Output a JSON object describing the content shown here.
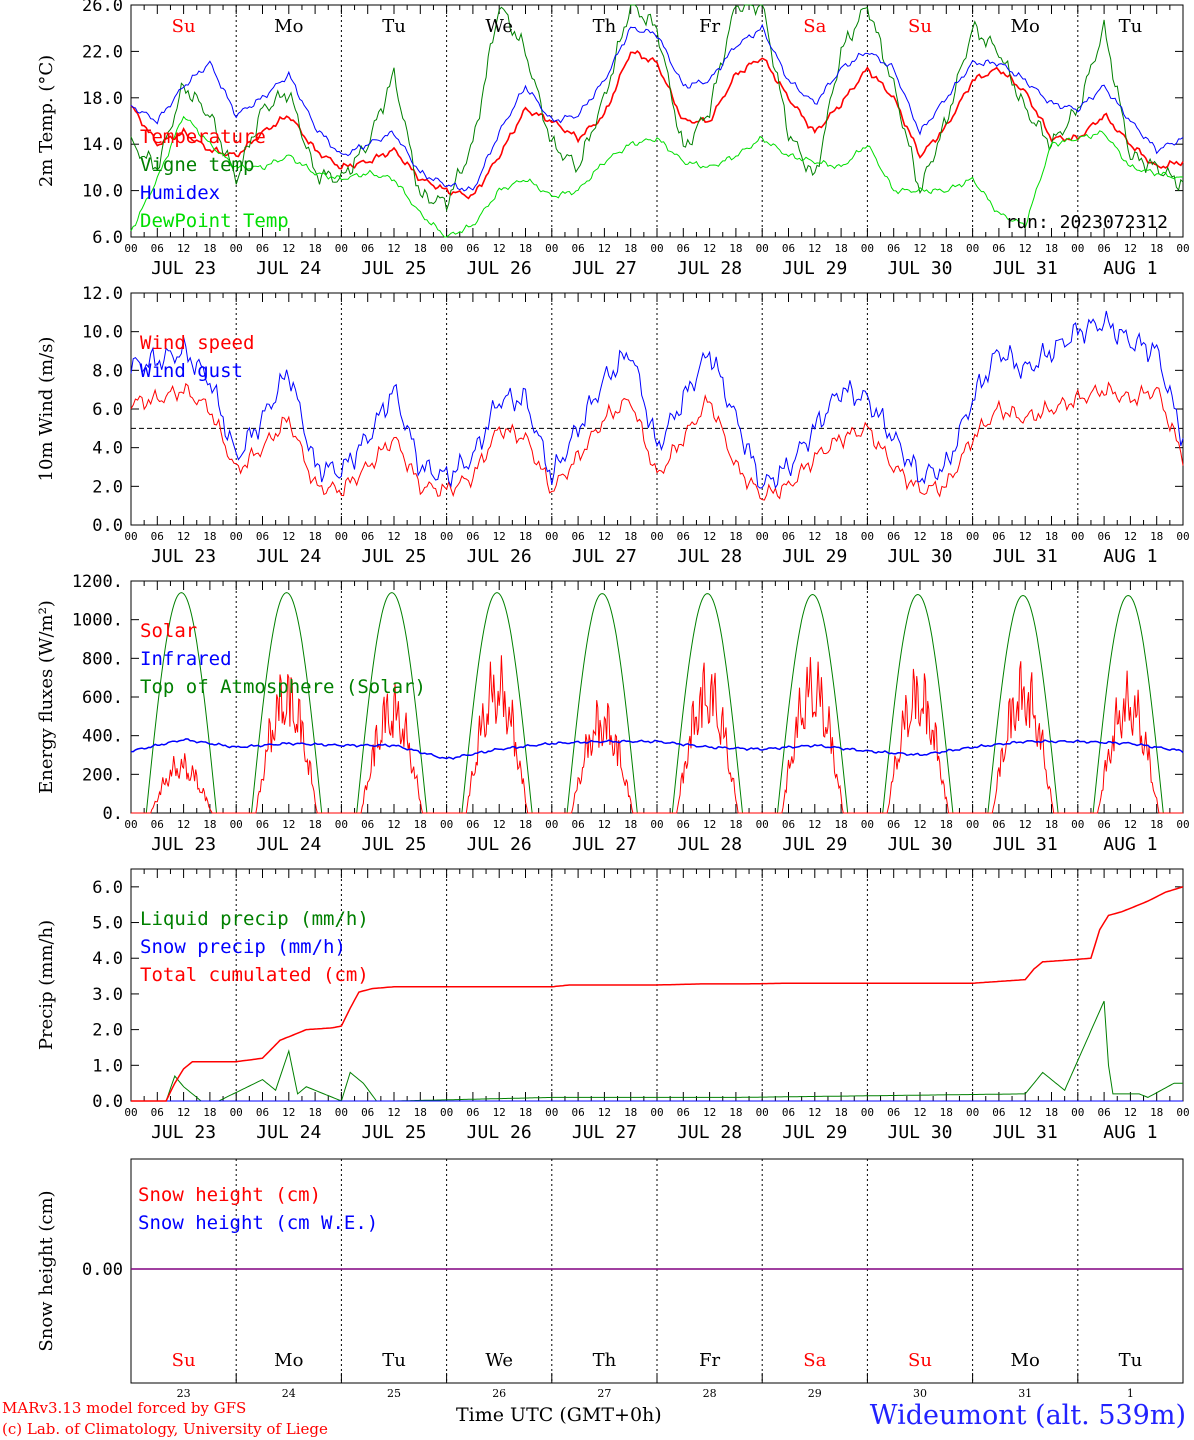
{
  "station": {
    "name": "Wideumont (alt. 539m)"
  },
  "footer": {
    "model": "MARv3.13 model forced by GFS",
    "credit": "(c) Lab. of Climatology, University of Liege",
    "xaxis_title": "Time UTC (GMT+0h)"
  },
  "run_label": "run: 2023072312",
  "days": {
    "dates": [
      "JUL 23",
      "JUL 24",
      "JUL 25",
      "JUL 26",
      "JUL 27",
      "JUL 28",
      "JUL 29",
      "JUL 30",
      "JUL 31",
      "AUG  1"
    ],
    "weekdays": [
      "Su",
      "Mo",
      "Tu",
      "We",
      "Th",
      "Fr",
      "Sa",
      "Su",
      "Mo",
      "Tu"
    ],
    "day_numbers": [
      "23",
      "24",
      "25",
      "26",
      "27",
      "28",
      "29",
      "30",
      "31",
      "1"
    ],
    "weekday_colors": [
      "#ff0000",
      "#000000",
      "#000000",
      "#000000",
      "#000000",
      "#000000",
      "#ff0000",
      "#ff0000",
      "#000000",
      "#000000"
    ],
    "hour_labels": [
      "00",
      "06",
      "12",
      "18"
    ]
  },
  "chart_data": [
    {
      "type": "line",
      "ylabel": "2m Temp. (°C)",
      "ylim": [
        6.0,
        26.0
      ],
      "yticks": [
        "6.0",
        "10.0",
        "14.0",
        "18.0",
        "22.0",
        "26.0"
      ],
      "x_unit": "hours since JUL 23 00 UTC",
      "series": [
        {
          "name": "Temperature",
          "color": "#ff0000",
          "x": [
            0,
            6,
            12,
            18,
            24,
            30,
            36,
            42,
            48,
            54,
            60,
            66,
            72,
            78,
            84,
            90,
            96,
            102,
            108,
            114,
            120,
            126,
            132,
            138,
            144,
            150,
            156,
            162,
            168,
            174,
            180,
            186,
            192,
            198,
            204,
            210,
            216,
            222,
            228,
            234,
            240
          ],
          "y": [
            17.3,
            14.0,
            15.0,
            13.5,
            13.0,
            15.0,
            16.5,
            13.5,
            12.0,
            12.5,
            13.5,
            11.0,
            10.0,
            9.5,
            13.0,
            17.0,
            16.0,
            14.5,
            16.5,
            22.0,
            21.0,
            16.0,
            16.0,
            20.0,
            21.5,
            18.0,
            15.0,
            17.5,
            20.5,
            18.0,
            13.0,
            15.5,
            19.5,
            20.5,
            18.5,
            14.5,
            14.5,
            16.5,
            14.0,
            12.0,
            12.5
          ]
        },
        {
          "name": "Vigne temp",
          "color": "#008000",
          "x": [
            0,
            6,
            12,
            18,
            24,
            30,
            36,
            42,
            48,
            54,
            60,
            66,
            72,
            78,
            84,
            90,
            96,
            102,
            108,
            114,
            120,
            126,
            132,
            138,
            144,
            150,
            156,
            162,
            168,
            174,
            180,
            186,
            192,
            198,
            204,
            210,
            216,
            222,
            228,
            234,
            240
          ],
          "y": [
            14.0,
            12.0,
            19.0,
            16.5,
            11.0,
            17.0,
            18.5,
            11.5,
            11.0,
            14.0,
            20.0,
            9.5,
            9.0,
            14.0,
            26.0,
            22.0,
            14.0,
            12.0,
            18.0,
            26.0,
            24.0,
            13.5,
            17.0,
            26.0,
            26.0,
            15.0,
            11.0,
            22.0,
            26.0,
            19.0,
            10.0,
            16.0,
            24.0,
            22.0,
            17.0,
            14.0,
            17.0,
            24.0,
            13.0,
            12.0,
            10.5
          ]
        },
        {
          "name": "Humidex",
          "color": "#0000ff",
          "x": [
            0,
            6,
            12,
            18,
            24,
            30,
            36,
            42,
            48,
            54,
            60,
            66,
            72,
            78,
            84,
            90,
            96,
            102,
            108,
            114,
            120,
            126,
            132,
            138,
            144,
            150,
            156,
            162,
            168,
            174,
            180,
            186,
            192,
            198,
            204,
            210,
            216,
            222,
            228,
            234,
            240
          ],
          "y": [
            17.3,
            16.0,
            19.0,
            21.0,
            16.5,
            18.0,
            20.0,
            15.5,
            13.0,
            14.0,
            15.0,
            11.5,
            10.5,
            10.0,
            15.0,
            19.0,
            16.0,
            16.5,
            19.5,
            24.0,
            23.5,
            19.0,
            19.5,
            22.5,
            24.0,
            19.5,
            17.5,
            20.5,
            22.0,
            20.5,
            15.0,
            18.0,
            21.0,
            21.0,
            19.5,
            17.5,
            17.0,
            19.0,
            16.0,
            13.5,
            14.5
          ]
        },
        {
          "name": "DewPoint Temp",
          "color": "#00dd00",
          "x": [
            0,
            6,
            12,
            18,
            24,
            30,
            36,
            42,
            48,
            54,
            60,
            66,
            72,
            78,
            84,
            90,
            96,
            102,
            108,
            114,
            120,
            126,
            132,
            138,
            144,
            150,
            156,
            162,
            168,
            174,
            180,
            186,
            192,
            198,
            204,
            210,
            216,
            222,
            228,
            234,
            240
          ],
          "y": [
            6.5,
            11.0,
            16.5,
            14.0,
            12.0,
            12.0,
            13.0,
            11.5,
            11.0,
            11.5,
            11.0,
            8.0,
            6.0,
            7.0,
            10.0,
            11.0,
            9.5,
            10.0,
            12.5,
            14.0,
            14.5,
            12.5,
            12.0,
            13.0,
            14.5,
            13.0,
            12.5,
            12.0,
            14.0,
            10.0,
            10.0,
            10.0,
            11.0,
            8.0,
            7.0,
            14.0,
            14.5,
            15.0,
            12.0,
            11.5,
            11.0
          ]
        }
      ]
    },
    {
      "type": "line",
      "ylabel": "10m Wind (m/s)",
      "ylim": [
        0.0,
        12.0
      ],
      "yticks": [
        "0.0",
        "2.0",
        "4.0",
        "6.0",
        "8.0",
        "10.0",
        "12.0"
      ],
      "reference_line": 5.0,
      "series": [
        {
          "name": "Wind speed",
          "color": "#ff0000",
          "x": [
            0,
            6,
            12,
            18,
            24,
            30,
            36,
            42,
            48,
            54,
            60,
            66,
            72,
            78,
            84,
            90,
            96,
            102,
            108,
            114,
            120,
            126,
            132,
            138,
            144,
            150,
            156,
            162,
            168,
            174,
            180,
            186,
            192,
            198,
            204,
            210,
            216,
            222,
            228,
            234,
            240
          ],
          "y": [
            6.3,
            6.5,
            7.0,
            6.0,
            2.8,
            4.0,
            5.5,
            2.0,
            1.8,
            3.0,
            4.5,
            2.0,
            1.8,
            2.5,
            5.0,
            4.5,
            1.8,
            3.5,
            5.5,
            6.5,
            2.5,
            4.5,
            6.5,
            3.0,
            1.5,
            2.0,
            3.5,
            4.5,
            5.0,
            3.0,
            1.8,
            2.0,
            4.5,
            6.0,
            5.5,
            6.0,
            6.5,
            7.0,
            6.5,
            7.0,
            3.5
          ]
        },
        {
          "name": "Wind gust",
          "color": "#0000ff",
          "x": [
            0,
            6,
            12,
            18,
            24,
            30,
            36,
            42,
            48,
            54,
            60,
            66,
            72,
            78,
            84,
            90,
            96,
            102,
            108,
            114,
            120,
            126,
            132,
            138,
            144,
            150,
            156,
            162,
            168,
            174,
            180,
            186,
            192,
            198,
            204,
            210,
            216,
            222,
            228,
            234,
            240
          ],
          "y": [
            8.2,
            8.5,
            9.0,
            7.5,
            3.5,
            5.5,
            8.0,
            3.0,
            2.8,
            4.5,
            7.0,
            3.0,
            2.5,
            3.5,
            6.5,
            6.5,
            2.5,
            5.0,
            7.5,
            9.0,
            4.0,
            6.5,
            9.0,
            5.5,
            2.0,
            3.0,
            5.0,
            7.0,
            6.5,
            4.5,
            2.5,
            3.0,
            6.5,
            9.0,
            8.0,
            9.0,
            10.0,
            10.5,
            9.5,
            9.0,
            4.5
          ]
        }
      ]
    },
    {
      "type": "line",
      "ylabel": "Energy fluxes (W/m²)",
      "ylim": [
        0,
        1200
      ],
      "yticks": [
        "0.",
        "200.",
        "400.",
        "600.",
        "800.",
        "1000.",
        "1200."
      ],
      "series": [
        {
          "name": "Solar",
          "color": "#ff0000",
          "daily_peak": [
            320,
            800,
            700,
            840,
            620,
            820,
            850,
            800,
            820,
            740
          ]
        },
        {
          "name": "Infrared",
          "color": "#0000ff",
          "x": [
            0,
            12,
            24,
            36,
            48,
            60,
            72,
            84,
            96,
            108,
            120,
            132,
            144,
            156,
            168,
            180,
            192,
            204,
            216,
            228,
            240
          ],
          "y": [
            320,
            380,
            340,
            360,
            350,
            350,
            280,
            330,
            360,
            370,
            370,
            340,
            330,
            350,
            320,
            300,
            340,
            370,
            370,
            360,
            320
          ]
        },
        {
          "name": "Top of Atmosphere (Solar)",
          "color": "#008000",
          "daily_peak": [
            1140,
            1140,
            1140,
            1140,
            1135,
            1135,
            1130,
            1130,
            1125,
            1125
          ]
        }
      ]
    },
    {
      "type": "line",
      "ylabel": "Precip (mm/h)",
      "ylim": [
        0.0,
        6.5
      ],
      "yticks": [
        "0.0",
        "1.0",
        "2.0",
        "3.0",
        "4.0",
        "5.0",
        "6.0"
      ],
      "series": [
        {
          "name": "Liquid precip (mm/h)",
          "color": "#008000",
          "x": [
            0,
            8,
            10,
            12,
            16,
            20,
            30,
            33,
            36,
            38,
            40,
            48,
            50,
            53,
            56,
            60,
            96,
            138,
            204,
            208,
            213,
            222,
            223,
            224,
            230,
            232,
            238
          ],
          "y": [
            0,
            0,
            0.7,
            0.4,
            0,
            0,
            0.6,
            0.3,
            1.4,
            0.2,
            0.4,
            0,
            0.8,
            0.5,
            0,
            0,
            0.1,
            0.1,
            0.2,
            0.8,
            0.3,
            2.8,
            1.0,
            0.2,
            0.2,
            0.1,
            0.5
          ]
        },
        {
          "name": "Snow precip (mm/h)",
          "color": "#0000ff",
          "x": [
            0,
            240
          ],
          "y": [
            0,
            0
          ]
        },
        {
          "name": "Total cumulated (cm)",
          "color": "#ff0000",
          "x": [
            0,
            8,
            10,
            12,
            14,
            24,
            30,
            34,
            37,
            40,
            46,
            48,
            50,
            52,
            55,
            60,
            96,
            100,
            120,
            130,
            140,
            150,
            160,
            170,
            180,
            192,
            204,
            206,
            208,
            214,
            219,
            221,
            223,
            226,
            232,
            236,
            240
          ],
          "y": [
            0,
            0,
            0.5,
            0.9,
            1.1,
            1.1,
            1.2,
            1.7,
            1.85,
            2.0,
            2.05,
            2.1,
            2.6,
            3.05,
            3.15,
            3.2,
            3.2,
            3.25,
            3.25,
            3.28,
            3.28,
            3.3,
            3.3,
            3.3,
            3.3,
            3.3,
            3.4,
            3.7,
            3.9,
            3.95,
            4.0,
            4.8,
            5.2,
            5.3,
            5.6,
            5.85,
            6.0
          ]
        }
      ]
    },
    {
      "type": "line",
      "ylabel": "Snow height (cm)",
      "yticks": [
        "0.00"
      ],
      "series": [
        {
          "name": "Snow height (cm)",
          "color": "#ff0000",
          "x": [
            0,
            240
          ],
          "y": [
            0,
            0
          ]
        },
        {
          "name": "Snow height (cm W.E.)",
          "color": "#0000ff",
          "x": [
            0,
            240
          ],
          "y": [
            0,
            0
          ]
        }
      ]
    }
  ]
}
